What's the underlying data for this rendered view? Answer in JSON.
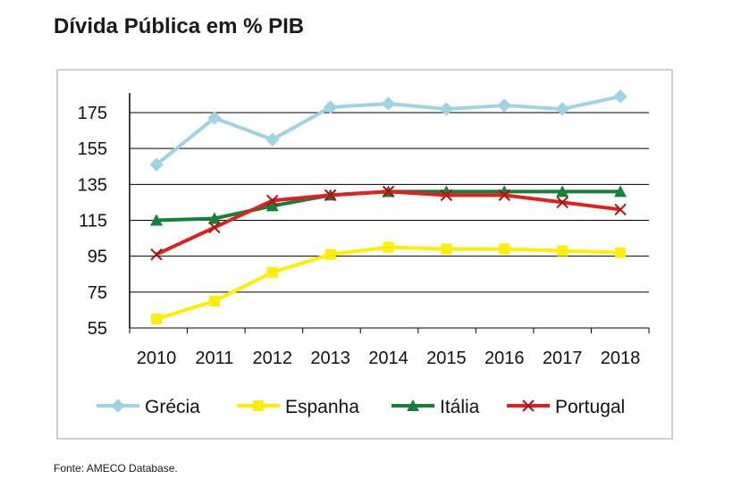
{
  "title": "Dívida Pública em % PIB",
  "source": "Fonte: AMECO Database.",
  "chart_data": {
    "type": "line",
    "title": "Dívida Pública em % PIB",
    "xlabel": "",
    "ylabel": "",
    "x": [
      "2010",
      "2011",
      "2012",
      "2013",
      "2014",
      "2015",
      "2016",
      "2017",
      "2018"
    ],
    "ylim": [
      55,
      185
    ],
    "yticks": [
      55,
      75,
      95,
      115,
      135,
      155,
      175
    ],
    "grid": true,
    "legend": "bottom",
    "series": [
      {
        "name": "Grécia",
        "color": "#9dd3e3",
        "marker": "diamond",
        "values": [
          146,
          172,
          160,
          178,
          180,
          177,
          179,
          177,
          184
        ]
      },
      {
        "name": "Espanha",
        "color": "#ffee00",
        "marker": "square",
        "values": [
          60,
          70,
          86,
          96,
          100,
          99,
          99,
          98,
          97
        ]
      },
      {
        "name": "Itália",
        "color": "#14803a",
        "marker": "triangle",
        "values": [
          115,
          116,
          123,
          129,
          131,
          131,
          131,
          131,
          131
        ]
      },
      {
        "name": "Portugal",
        "color": "#e02020",
        "marker": "x",
        "values": [
          96,
          111,
          126,
          129,
          131,
          129,
          129,
          125,
          121
        ]
      }
    ]
  }
}
